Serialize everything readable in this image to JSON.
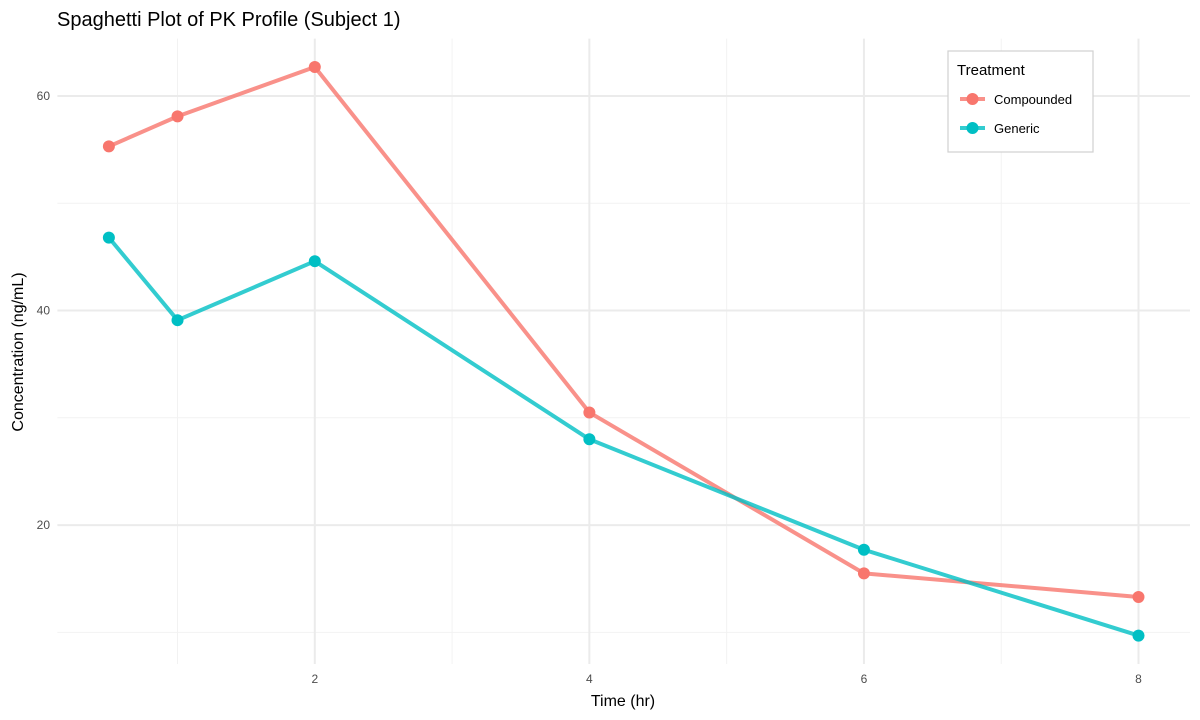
{
  "chart_data": {
    "type": "line",
    "title": "Spaghetti Plot of PK Profile (Subject 1)",
    "xlabel": "Time (hr)",
    "ylabel": "Concentration (ng/mL)",
    "x": [
      0.5,
      1,
      2,
      4,
      6,
      8
    ],
    "xlim": [
      0.125,
      8.375
    ],
    "ylim": [
      7.05,
      65.35
    ],
    "xticks": [
      2,
      4,
      6,
      8
    ],
    "xminor": [
      1,
      3,
      5,
      7
    ],
    "yticks": [
      20,
      40,
      60
    ],
    "yminor": [
      10,
      30,
      50
    ],
    "grid": true,
    "legend": {
      "title": "Treatment",
      "position": "top-right"
    },
    "series": [
      {
        "name": "Compounded",
        "color": "#F8766D",
        "values": [
          55.3,
          58.1,
          62.7,
          30.5,
          15.5,
          13.3
        ]
      },
      {
        "name": "Generic",
        "color": "#00BFC4",
        "values": [
          46.8,
          39.1,
          44.6,
          28.0,
          17.7,
          9.7
        ]
      }
    ]
  }
}
